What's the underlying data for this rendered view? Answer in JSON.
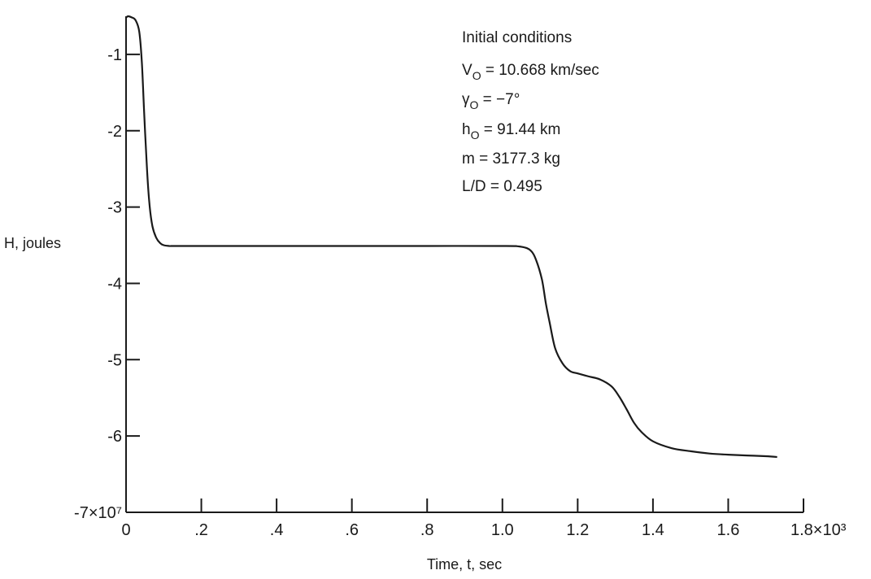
{
  "chart_data": {
    "type": "line",
    "title": "",
    "xlabel": "Time, t, sec",
    "ylabel": "H, joules",
    "xlim": [
      0,
      1800
    ],
    "ylim": [
      -70000000,
      -5000000
    ],
    "x_ticks": [
      {
        "value": 0,
        "label": "0"
      },
      {
        "value": 200,
        "label": ".2"
      },
      {
        "value": 400,
        "label": ".4"
      },
      {
        "value": 600,
        "label": ".6"
      },
      {
        "value": 800,
        "label": ".8"
      },
      {
        "value": 1000,
        "label": "1.0"
      },
      {
        "value": 1200,
        "label": "1.2"
      },
      {
        "value": 1400,
        "label": "1.4"
      },
      {
        "value": 1600,
        "label": "1.6"
      },
      {
        "value": 1800,
        "label": "1.8×10³"
      }
    ],
    "y_ticks": [
      {
        "value": -70000000,
        "label": "-7×10⁷"
      },
      {
        "value": -60000000,
        "label": "-6"
      },
      {
        "value": -50000000,
        "label": "-5"
      },
      {
        "value": -40000000,
        "label": "-4"
      },
      {
        "value": -30000000,
        "label": "-3"
      },
      {
        "value": -20000000,
        "label": "-2"
      },
      {
        "value": -10000000,
        "label": "-1"
      }
    ],
    "series": [
      {
        "x": [
          0,
          5,
          15,
          25,
          35,
          42,
          48,
          55,
          62,
          70,
          80,
          90,
          100,
          115,
          130,
          200,
          400,
          600,
          800,
          1000,
          1050,
          1075,
          1090,
          1105,
          1115,
          1125,
          1140,
          1160,
          1180,
          1200,
          1230,
          1260,
          1290,
          1310,
          1330,
          1350,
          1370,
          1400,
          1450,
          1500,
          1550,
          1600,
          1650,
          1700,
          1730
        ],
        "y": [
          -5200000,
          -5000000,
          -5150000,
          -5500000,
          -7000000,
          -11000000,
          -17500000,
          -24500000,
          -29500000,
          -32500000,
          -34000000,
          -34700000,
          -35000000,
          -35100000,
          -35100000,
          -35100000,
          -35100000,
          -35100000,
          -35100000,
          -35100000,
          -35200000,
          -35700000,
          -37000000,
          -39500000,
          -42500000,
          -45000000,
          -48500000,
          -50500000,
          -51500000,
          -51800000,
          -52200000,
          -52600000,
          -53500000,
          -54800000,
          -56500000,
          -58300000,
          -59500000,
          -60700000,
          -61600000,
          -62000000,
          -62300000,
          -62450000,
          -62550000,
          -62650000,
          -62750000
        ]
      }
    ],
    "grid": false,
    "legend": "none",
    "annotation": {
      "title": "Initial conditions",
      "lines": [
        {
          "sym": "V",
          "sub": "O",
          "rest": " = 10.668 km/sec"
        },
        {
          "sym": "γ",
          "sub": "O",
          "rest": " = −7°"
        },
        {
          "sym": "h",
          "sub": "O",
          "rest": " = 91.44 km"
        },
        {
          "sym": "m",
          "sub": "",
          "rest": "  = 3177.3 kg"
        },
        {
          "sym": "L/D",
          "sub": "",
          "rest": " = 0.495"
        }
      ]
    }
  }
}
